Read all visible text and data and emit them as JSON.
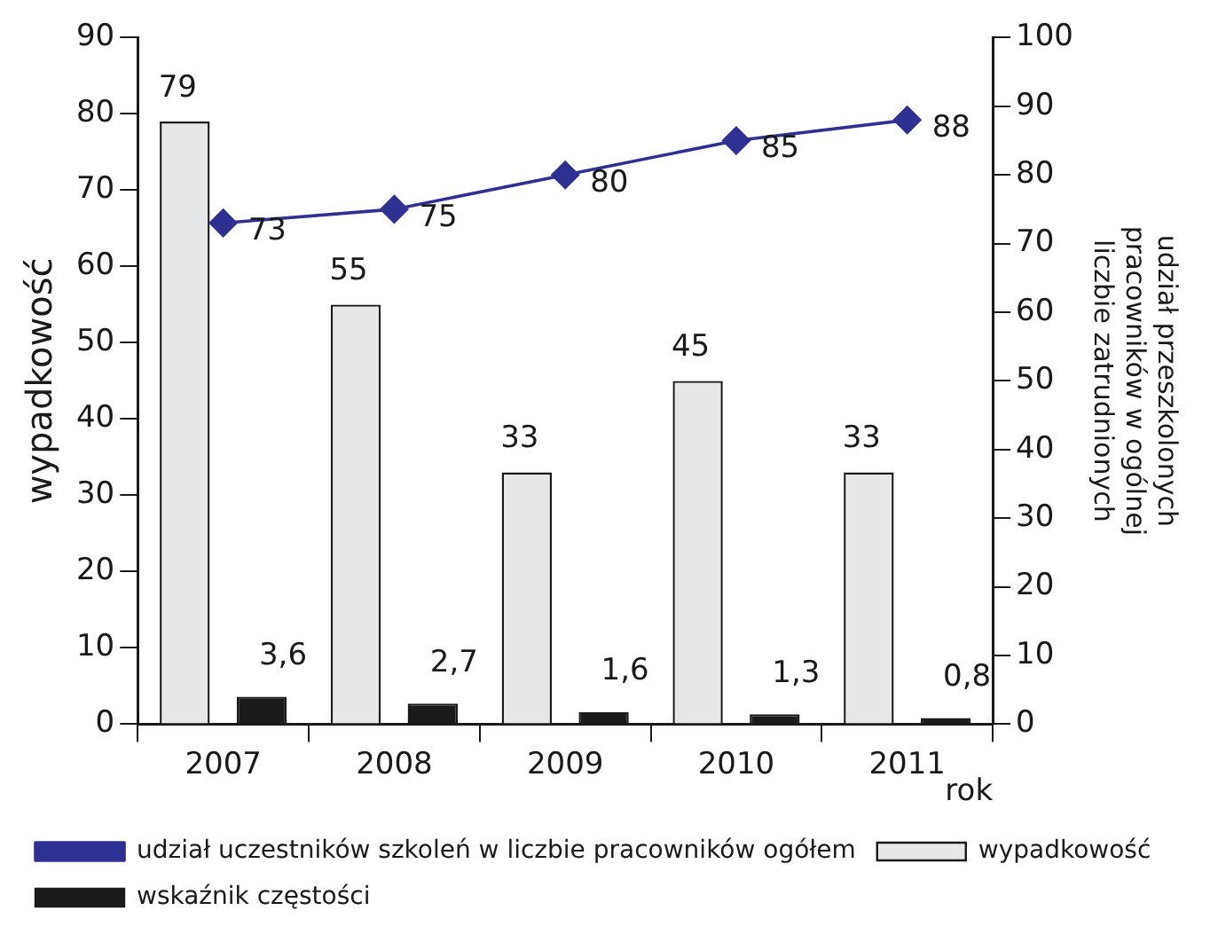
{
  "chart_data": {
    "type": "bar",
    "xlabel": "rok",
    "ylabel": "wypadkowość",
    "y2label": "udział przeszkolonych\npracowników w ogólnej\nliczbie zatrudnionych",
    "categories": [
      "2007",
      "2008",
      "2009",
      "2010",
      "2011"
    ],
    "series": [
      {
        "name": "wypadkowość",
        "color": "#e6e7e8",
        "values": [
          79,
          55,
          33,
          45,
          33
        ],
        "value_labels": [
          "79",
          "55",
          "33",
          "45",
          "33"
        ]
      },
      {
        "name": "wskaźnik częstości",
        "color": "#1a1a1a",
        "values": [
          3.6,
          2.7,
          1.6,
          1.3,
          0.8
        ],
        "value_labels": [
          "3,6",
          "2,7",
          "1,6",
          "1,3",
          "0,8"
        ]
      },
      {
        "name": "udział uczestników szkoleń w liczbie pracowników ogółem",
        "type": "line",
        "axis": "y2",
        "color": "#2e3192",
        "values": [
          73,
          75,
          80,
          85,
          88
        ],
        "value_labels": [
          "73",
          "75",
          "80",
          "85",
          "88"
        ]
      }
    ],
    "ylim": [
      0,
      90
    ],
    "yticks": [
      0,
      10,
      20,
      30,
      40,
      50,
      60,
      70,
      80,
      90
    ],
    "y2lim": [
      0,
      100
    ],
    "y2ticks": [
      0,
      10,
      20,
      30,
      40,
      50,
      60,
      70,
      80,
      90,
      100
    ],
    "grid": false,
    "legend": "bottom",
    "marker": "diamond"
  }
}
